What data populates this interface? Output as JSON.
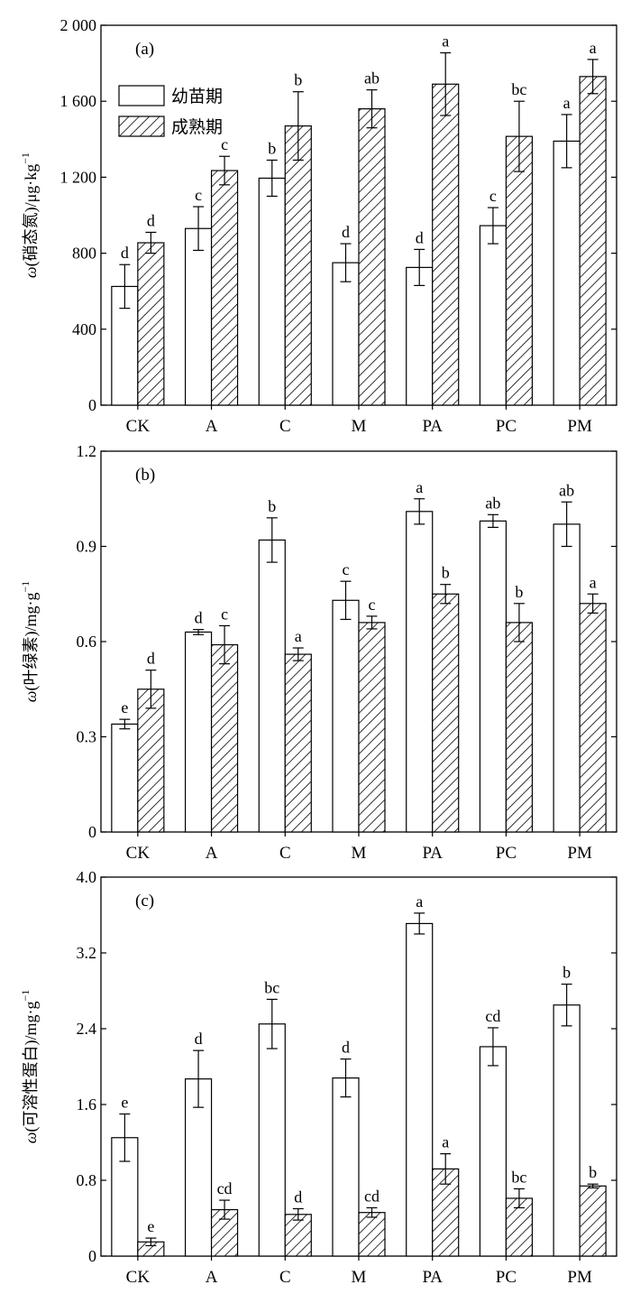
{
  "chart_data": [
    {
      "type": "bar",
      "panel_label": "(a)",
      "ylabel": "ω(硝态氮)/μg·kg⁻¹",
      "ylabel_parts": [
        "ω",
        "(硝态氮)/μg·kg",
        "−1"
      ],
      "ylim": [
        0,
        2000
      ],
      "yticks": [
        0,
        400,
        800,
        1200,
        1600,
        2000
      ],
      "yticklabels": [
        "0",
        "400",
        "800",
        "1 200",
        "1 600",
        "2 000"
      ],
      "categories": [
        "CK",
        "A",
        "C",
        "M",
        "PA",
        "PC",
        "PM"
      ],
      "legend": {
        "placement": "top-left"
      },
      "series": [
        {
          "name": "幼苗期",
          "pattern": "open",
          "values": [
            625,
            930,
            1195,
            750,
            725,
            945,
            1390
          ],
          "errors": [
            115,
            115,
            95,
            100,
            95,
            95,
            140
          ],
          "letters": [
            "d",
            "c",
            "b",
            "d",
            "d",
            "c",
            "a"
          ]
        },
        {
          "name": "成熟期",
          "pattern": "hatched",
          "values": [
            855,
            1235,
            1470,
            1560,
            1690,
            1415,
            1730
          ],
          "errors": [
            55,
            75,
            180,
            100,
            165,
            185,
            90
          ],
          "letters": [
            "d",
            "c",
            "b",
            "ab",
            "a",
            "bc",
            "a"
          ]
        }
      ]
    },
    {
      "type": "bar",
      "panel_label": "(b)",
      "ylabel": "ω(叶绿素)/mg·g⁻¹",
      "ylabel_parts": [
        "ω",
        "(叶绿素)/mg·g",
        "−1"
      ],
      "ylim": [
        0,
        1.2
      ],
      "yticks": [
        0,
        0.3,
        0.6,
        0.9,
        1.2
      ],
      "yticklabels": [
        "0",
        "0.3",
        "0.6",
        "0.9",
        "1.2"
      ],
      "categories": [
        "CK",
        "A",
        "C",
        "M",
        "PA",
        "PC",
        "PM"
      ],
      "series": [
        {
          "name": "幼苗期",
          "pattern": "open",
          "values": [
            0.34,
            0.63,
            0.92,
            0.73,
            1.01,
            0.98,
            0.97
          ],
          "errors": [
            0.015,
            0.008,
            0.07,
            0.06,
            0.04,
            0.02,
            0.07
          ],
          "letters": [
            "e",
            "d",
            "b",
            "c",
            "a",
            "ab",
            "ab"
          ]
        },
        {
          "name": "成熟期",
          "pattern": "hatched",
          "values": [
            0.45,
            0.59,
            0.56,
            0.66,
            0.75,
            0.66,
            0.72
          ],
          "errors": [
            0.06,
            0.06,
            0.02,
            0.02,
            0.03,
            0.06,
            0.03
          ],
          "letters": [
            "d",
            "c",
            "a",
            "c",
            "b",
            "b",
            "a"
          ]
        }
      ]
    },
    {
      "type": "bar",
      "panel_label": "(c)",
      "ylabel": "ω(可溶性蛋白)/mg·g⁻¹",
      "ylabel_parts": [
        "ω",
        "(可溶性蛋白)/mg·g",
        "−1"
      ],
      "ylim": [
        0,
        4.0
      ],
      "yticks": [
        0,
        0.8,
        1.6,
        2.4,
        3.2,
        4.0
      ],
      "yticklabels": [
        "0",
        "0.8",
        "1.6",
        "2.4",
        "3.2",
        "4.0"
      ],
      "categories": [
        "CK",
        "A",
        "C",
        "M",
        "PA",
        "PC",
        "PM"
      ],
      "series": [
        {
          "name": "幼苗期",
          "pattern": "open",
          "values": [
            1.25,
            1.87,
            2.45,
            1.88,
            3.51,
            2.21,
            2.65
          ],
          "errors": [
            0.25,
            0.3,
            0.26,
            0.2,
            0.11,
            0.2,
            0.22
          ],
          "letters": [
            "e",
            "d",
            "bc",
            "d",
            "a",
            "cd",
            "b"
          ]
        },
        {
          "name": "成熟期",
          "pattern": "hatched",
          "values": [
            0.15,
            0.49,
            0.44,
            0.46,
            0.92,
            0.61,
            0.74
          ],
          "errors": [
            0.04,
            0.1,
            0.06,
            0.05,
            0.16,
            0.1,
            0.02
          ],
          "letters": [
            "e",
            "cd",
            "d",
            "cd",
            "a",
            "bc",
            "b"
          ]
        }
      ]
    }
  ]
}
